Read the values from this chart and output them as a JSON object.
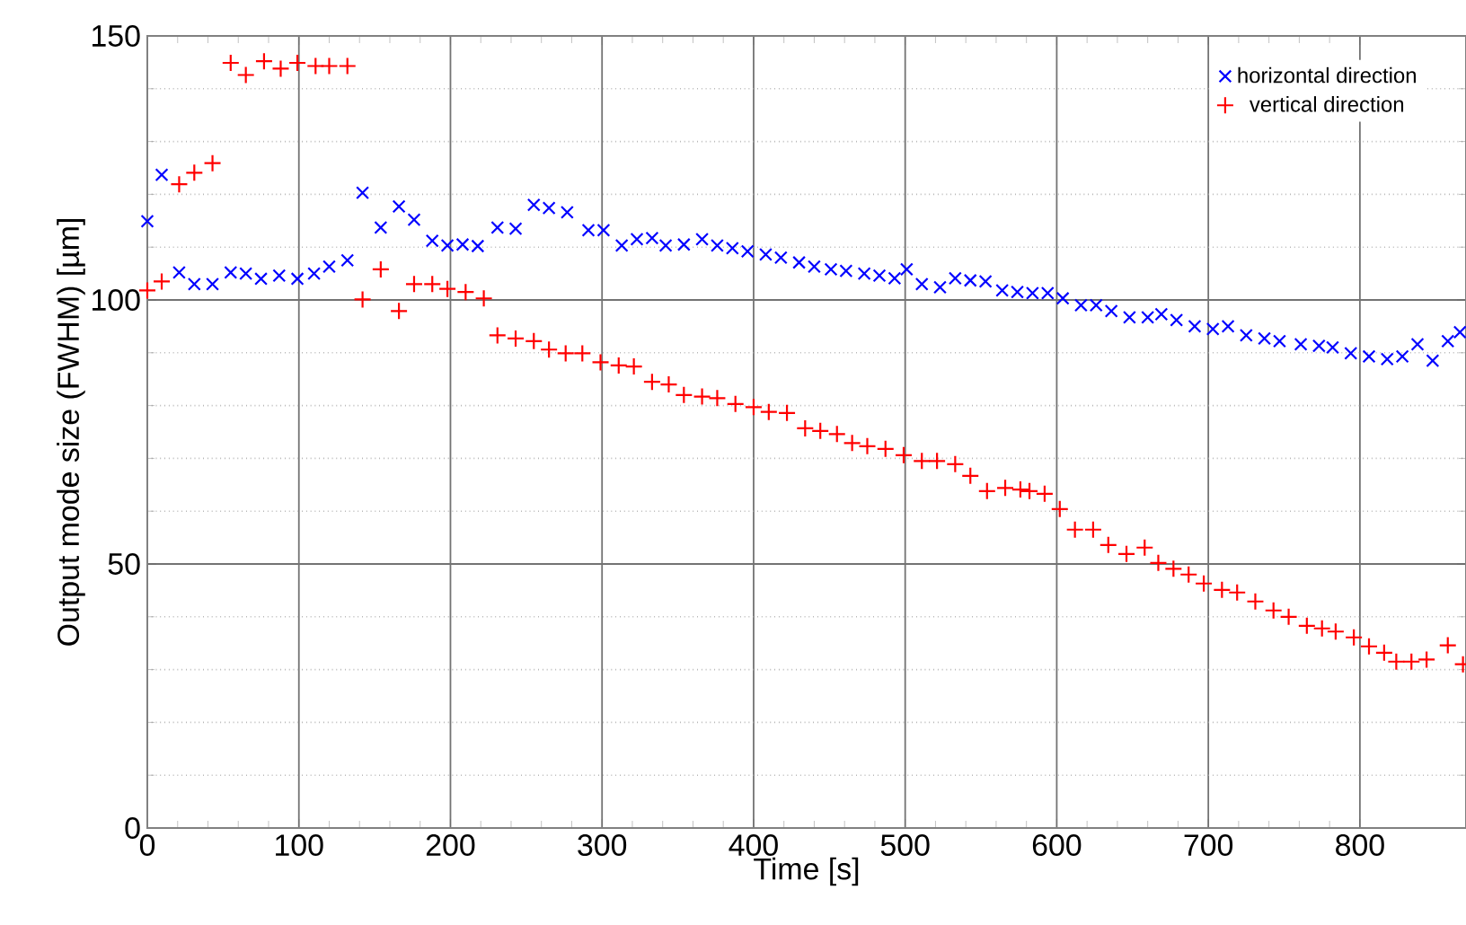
{
  "chart_data": {
    "type": "scatter",
    "xlabel": "Time [s]",
    "ylabel": "Output mode size  (FWHM) [µm]",
    "xlim": [
      0,
      870
    ],
    "ylim": [
      0,
      150
    ],
    "xticks": [
      0,
      100,
      200,
      300,
      400,
      500,
      600,
      700,
      800
    ],
    "yticks": [
      0,
      50,
      100,
      150
    ],
    "grid": true,
    "legend": "top right",
    "series": [
      {
        "name": "horizontal direction",
        "color": "#0000ff",
        "marker": "x",
        "x": [
          0,
          9.5,
          21,
          31,
          43,
          55,
          65,
          75,
          87,
          99,
          110,
          120,
          132,
          142,
          154,
          166,
          176,
          188,
          198,
          208,
          218,
          231,
          243,
          255,
          265,
          277,
          291,
          301,
          313,
          323,
          333,
          342,
          354,
          366,
          376,
          386,
          396,
          408,
          418,
          430,
          440,
          451,
          461,
          473,
          483,
          493,
          501,
          511,
          523,
          533,
          543,
          553,
          564,
          574,
          584,
          594,
          604,
          616,
          626,
          636,
          648,
          660,
          669,
          679,
          691,
          703,
          713,
          725,
          737,
          747,
          761,
          773,
          782,
          794,
          806,
          818,
          828,
          838,
          848,
          858,
          866
        ],
        "values": [
          114.9,
          123.7,
          105.2,
          103,
          103,
          105.2,
          105,
          104,
          104.6,
          104,
          105,
          106.3,
          107.5,
          120.3,
          113.7,
          117.7,
          115.2,
          111.2,
          110.3,
          110.5,
          110.2,
          113.7,
          113.5,
          118,
          117.4,
          116.6,
          113.2,
          113.2,
          110.3,
          111.5,
          111.7,
          110.3,
          110.5,
          111.5,
          110.3,
          109.8,
          109.2,
          108.6,
          108,
          107.1,
          106.3,
          105.8,
          105.5,
          105,
          104.6,
          104.1,
          105.8,
          103,
          102.4,
          104.1,
          103.7,
          103.5,
          101.8,
          101.5,
          101.3,
          101.3,
          100.3,
          99,
          99,
          97.9,
          96.7,
          96.7,
          97.3,
          96.2,
          95,
          94.5,
          95,
          93.3,
          92.7,
          92.2,
          91.6,
          91.3,
          91,
          89.9,
          89.3,
          88.8,
          89.3,
          91.6,
          88.5,
          92.2,
          93.9
        ]
      },
      {
        "name": "vertical direction",
        "color": "#ff0000",
        "marker": "plus",
        "x": [
          0,
          9.5,
          21,
          31,
          43,
          55,
          65,
          77,
          88,
          99,
          111,
          120,
          132,
          142,
          154,
          166,
          176,
          188,
          198,
          210,
          222,
          231,
          243,
          255,
          265,
          276,
          287,
          299,
          311,
          321,
          333,
          344,
          354,
          366,
          376,
          388,
          400,
          410,
          422,
          434,
          444,
          455,
          465,
          475,
          487,
          499,
          511,
          521,
          533,
          543,
          554,
          566,
          576,
          582,
          592,
          602,
          612,
          624,
          634,
          646,
          658,
          667,
          677,
          687,
          697,
          709,
          719,
          731,
          743,
          753,
          765,
          775,
          784,
          796,
          806,
          816,
          824,
          834,
          844,
          858,
          868
        ],
        "values": [
          101.8,
          103.5,
          121.9,
          124.1,
          125.9,
          144.9,
          142.6,
          145.2,
          143.8,
          144.9,
          144.3,
          144.3,
          144.3,
          100.1,
          105.8,
          97.9,
          103,
          103,
          102.1,
          101.5,
          100.3,
          93.3,
          92.7,
          92.2,
          90.6,
          89.9,
          89.9,
          88.2,
          87.6,
          87.4,
          84.5,
          84,
          82,
          81.7,
          81.4,
          80.3,
          79.7,
          78.8,
          78.6,
          75.7,
          75.2,
          74.6,
          72.9,
          72.3,
          71.8,
          70.6,
          69.5,
          69.5,
          68.9,
          66.7,
          63.8,
          64.4,
          64.1,
          63.8,
          63.3,
          60.4,
          56.5,
          56.5,
          53.6,
          51.9,
          53.1,
          50.2,
          49.1,
          48,
          46.3,
          45.1,
          44.6,
          42.9,
          41.2,
          40,
          38.3,
          37.8,
          37.2,
          36.1,
          34.4,
          33.2,
          31.5,
          31.5,
          31.9,
          34.6,
          31
        ]
      }
    ]
  }
}
